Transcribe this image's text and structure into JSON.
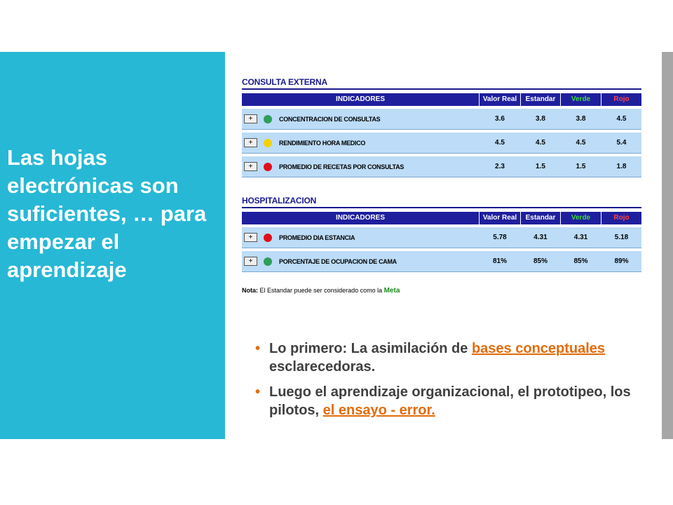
{
  "slide": {
    "title": "Las hojas electrónicas son suficientes, … para empezar el aprendizaje"
  },
  "colors": {
    "left_panel": "#27b8d6",
    "table_header": "#1f1f9e",
    "row_bg": "#bcdcf7",
    "link": "#e36c0a",
    "green": "#2e9e5b",
    "yellow": "#f5d000",
    "red": "#e0101a"
  },
  "table1": {
    "section": "CONSULTA EXTERNA",
    "headers": {
      "indicadores": "INDICADORES",
      "valor_real": "Valor Real",
      "estandar": "Estandar",
      "verde": "Verde",
      "rojo": "Rojo"
    },
    "rows": [
      {
        "button": "+",
        "status": "green",
        "name": "CONCENTRACION DE CONSULTAS",
        "valor_real": "3.6",
        "estandar": "3.8",
        "verde": "3.8",
        "rojo": "4.5"
      },
      {
        "button": "+",
        "status": "yellow",
        "name": "RENDIMIENTO HORA MEDICO",
        "valor_real": "4.5",
        "estandar": "4.5",
        "verde": "4.5",
        "rojo": "5.4"
      },
      {
        "button": "+",
        "status": "red",
        "name": "PROMEDIO DE RECETAS POR CONSULTAS",
        "valor_real": "2.3",
        "estandar": "1.5",
        "verde": "1.5",
        "rojo": "1.8"
      }
    ]
  },
  "table2": {
    "section": "HOSPITALIZACION",
    "headers": {
      "indicadores": "INDICADORES",
      "valor_real": "Valor Real",
      "estandar": "Estandar",
      "verde": "Verde",
      "rojo": "Rojo"
    },
    "rows": [
      {
        "button": "+",
        "status": "red",
        "name": "PROMEDIO DIA ESTANCIA",
        "valor_real": "5.78",
        "estandar": "4.31",
        "verde": "4.31",
        "rojo": "5.18"
      },
      {
        "button": "+",
        "status": "green",
        "name": "PORCENTAJE DE OCUPACION DE CAMA",
        "valor_real": "81%",
        "estandar": "85%",
        "verde": "85%",
        "rojo": "89%"
      }
    ]
  },
  "note": {
    "prefix": "Nota:",
    "text": "El Estandar puede ser considerado como la",
    "meta": "Meta"
  },
  "bullets": [
    {
      "pre": "Lo primero: La asimilación de ",
      "link": "bases conceptuales",
      "post": " esclarecedoras."
    },
    {
      "pre": "Luego el aprendizaje organizacional, el prototipeo, los pilotos, ",
      "link": "el ensayo - error.",
      "post": ""
    }
  ]
}
